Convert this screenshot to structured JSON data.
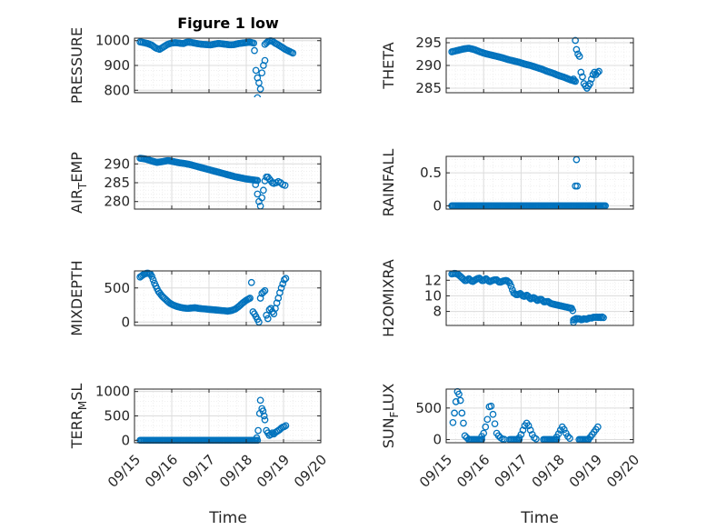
{
  "figure": {
    "title": "Figure 1 low",
    "xlabel": "Time"
  },
  "colors": {
    "marker": "#0072BD",
    "axis": "#262626",
    "grid": "#dcdcdc",
    "minor_grid": "#ececec"
  },
  "chart_data": [
    {
      "type": "scatter",
      "name": "pressure",
      "ylabel_parts": [
        {
          "t": "PRESSURE"
        }
      ],
      "xlim": [
        0,
        5
      ],
      "xticks": [
        0,
        1,
        2,
        3,
        4,
        5
      ],
      "xticklabels": [
        "09/15",
        "09/16",
        "09/17",
        "09/18",
        "09/19",
        "09/20"
      ],
      "ylim": [
        790,
        1010
      ],
      "yticks": [
        800,
        900,
        1000
      ],
      "yticklabels": [
        "800",
        "900",
        "1000"
      ],
      "segments": [
        {
          "x0": 0.15,
          "x1": 3.2,
          "y": [
            995,
            992,
            988,
            982,
            970,
            965,
            975,
            985,
            990,
            992,
            990,
            988,
            994,
            993,
            990,
            987,
            985,
            984,
            983,
            986,
            989,
            987,
            985,
            983,
            984,
            988,
            990,
            992,
            994,
            990
          ],
          "step": 0.04
        },
        {
          "x0": 3.5,
          "x1": 4.25,
          "y": [
            985,
            995,
            1000,
            998,
            990,
            985,
            978,
            972,
            965,
            960,
            955,
            950
          ],
          "step": 0.04
        }
      ],
      "points": [
        [
          3.22,
          960
        ],
        [
          3.26,
          880
        ],
        [
          3.3,
          850
        ],
        [
          3.34,
          830
        ],
        [
          3.38,
          805
        ],
        [
          3.42,
          870
        ],
        [
          3.46,
          900
        ],
        [
          3.5,
          920
        ],
        [
          3.3,
          770
        ]
      ]
    },
    {
      "type": "scatter",
      "name": "theta",
      "ylabel_parts": [
        {
          "t": "THETA"
        }
      ],
      "xlim": [
        0,
        5
      ],
      "xticks": [
        0,
        1,
        2,
        3,
        4,
        5
      ],
      "xticklabels": [
        "09/15",
        "09/16",
        "09/17",
        "09/18",
        "09/19",
        "09/20"
      ],
      "ylim": [
        284,
        296
      ],
      "yticks": [
        285,
        290,
        295
      ],
      "yticklabels": [
        "285",
        "290",
        "295"
      ],
      "segments": [
        {
          "x0": 0.15,
          "x1": 3.45,
          "y": [
            293,
            293.3,
            293.6,
            293.8,
            293.5,
            293,
            292.6,
            292.3,
            292,
            291.7,
            291.3,
            291,
            290.7,
            290.3,
            290,
            289.6,
            289.2,
            288.7,
            288.3,
            287.8,
            287.4,
            286.9,
            286.5
          ],
          "step": 0.035
        }
      ],
      "points": [
        [
          3.45,
          295.5
        ],
        [
          3.48,
          293.5
        ],
        [
          3.52,
          292.5
        ],
        [
          3.56,
          292
        ],
        [
          3.6,
          288.5
        ],
        [
          3.64,
          287.5
        ],
        [
          3.68,
          286
        ],
        [
          3.72,
          285.5
        ],
        [
          3.76,
          285
        ],
        [
          3.8,
          285.5
        ],
        [
          3.84,
          286
        ],
        [
          3.88,
          287
        ],
        [
          3.92,
          288
        ],
        [
          3.96,
          288.5
        ],
        [
          4.0,
          288
        ],
        [
          4.04,
          288.4
        ],
        [
          4.08,
          288.7
        ],
        [
          3.4,
          287
        ]
      ]
    },
    {
      "type": "scatter",
      "name": "air_temp",
      "ylabel_parts": [
        {
          "t": "AIR"
        },
        {
          "t": "T",
          "sub": true
        },
        {
          "t": "EMP"
        }
      ],
      "xlim": [
        0,
        5
      ],
      "xticks": [
        0,
        1,
        2,
        3,
        4,
        5
      ],
      "xticklabels": [
        "09/15",
        "09/16",
        "09/17",
        "09/18",
        "09/19",
        "09/20"
      ],
      "ylim": [
        278,
        292
      ],
      "yticks": [
        280,
        285,
        290
      ],
      "yticklabels": [
        "280",
        "285",
        "290"
      ],
      "segments": [
        {
          "x0": 0.15,
          "x1": 3.3,
          "y": [
            291.5,
            291.3,
            290.8,
            290.4,
            290.6,
            290.9,
            290.6,
            290.3,
            290.1,
            289.8,
            289.4,
            289,
            288.6,
            288.2,
            287.8,
            287.4,
            287,
            286.6,
            286.3,
            286,
            285.8,
            285.6
          ],
          "step": 0.035
        }
      ],
      "points": [
        [
          3.25,
          284.5
        ],
        [
          3.3,
          282
        ],
        [
          3.34,
          280
        ],
        [
          3.38,
          278.8
        ],
        [
          3.42,
          281
        ],
        [
          3.46,
          283
        ],
        [
          3.5,
          285.5
        ],
        [
          3.54,
          286.5
        ],
        [
          3.58,
          286.5
        ],
        [
          3.62,
          286
        ],
        [
          3.66,
          285.5
        ],
        [
          3.7,
          285
        ],
        [
          3.74,
          284.8
        ],
        [
          3.8,
          285
        ],
        [
          3.86,
          285.3
        ],
        [
          3.92,
          285
        ],
        [
          3.98,
          284.5
        ],
        [
          4.04,
          284.3
        ]
      ]
    },
    {
      "type": "scatter",
      "name": "rainfall",
      "ylabel_parts": [
        {
          "t": "RAINFALL"
        }
      ],
      "xlim": [
        0,
        5
      ],
      "xticks": [
        0,
        1,
        2,
        3,
        4,
        5
      ],
      "xticklabels": [
        "09/15",
        "09/16",
        "09/17",
        "09/18",
        "09/19",
        "09/20"
      ],
      "ylim": [
        -0.05,
        0.75
      ],
      "yticks": [
        0,
        0.5
      ],
      "yticklabels": [
        "0",
        "0.5"
      ],
      "segments": [
        {
          "x0": 0.15,
          "x1": 4.25,
          "y": [
            0
          ],
          "step": 0.035
        }
      ],
      "points": [
        [
          3.45,
          0.3
        ],
        [
          3.5,
          0.3
        ],
        [
          3.48,
          0.7
        ]
      ]
    },
    {
      "type": "scatter",
      "name": "mixdepth",
      "ylabel_parts": [
        {
          "t": "MIXDEPTH"
        }
      ],
      "xlim": [
        0,
        5
      ],
      "xticks": [
        0,
        1,
        2,
        3,
        4,
        5
      ],
      "xticklabels": [
        "09/15",
        "09/16",
        "09/17",
        "09/18",
        "09/19",
        "09/20"
      ],
      "ylim": [
        -50,
        750
      ],
      "yticks": [
        0,
        500
      ],
      "yticklabels": [
        "0",
        "500"
      ],
      "segments": [
        {
          "x0": 0.15,
          "x1": 3.1,
          "y": [
            660,
            700,
            720,
            700,
            560,
            450,
            380,
            330,
            280,
            250,
            230,
            215,
            205,
            200,
            205,
            210,
            200,
            195,
            190,
            185,
            180,
            175,
            170,
            165,
            160,
            170,
            190,
            230,
            280,
            320,
            350
          ],
          "step": 0.035
        }
      ],
      "points": [
        [
          3.14,
          580
        ],
        [
          3.18,
          150
        ],
        [
          3.22,
          120
        ],
        [
          3.26,
          80
        ],
        [
          3.3,
          40
        ],
        [
          3.34,
          0
        ],
        [
          3.38,
          350
        ],
        [
          3.42,
          420
        ],
        [
          3.46,
          440
        ],
        [
          3.5,
          460
        ],
        [
          3.54,
          100
        ],
        [
          3.58,
          50
        ],
        [
          3.62,
          180
        ],
        [
          3.66,
          200
        ],
        [
          3.7,
          150
        ],
        [
          3.74,
          120
        ],
        [
          3.78,
          200
        ],
        [
          3.82,
          280
        ],
        [
          3.86,
          350
        ],
        [
          3.9,
          430
        ],
        [
          3.94,
          500
        ],
        [
          3.98,
          560
        ],
        [
          4.02,
          620
        ],
        [
          4.06,
          640
        ]
      ]
    },
    {
      "type": "scatter",
      "name": "h2omixra",
      "ylabel_parts": [
        {
          "t": "H2OMIXRA"
        }
      ],
      "xlim": [
        0,
        5
      ],
      "xticks": [
        0,
        1,
        2,
        3,
        4,
        5
      ],
      "xticklabels": [
        "09/15",
        "09/16",
        "09/17",
        "09/18",
        "09/19",
        "09/20"
      ],
      "ylim": [
        6.2,
        13.2
      ],
      "yticks": [
        8,
        10,
        12
      ],
      "yticklabels": [
        "8",
        "10",
        "12"
      ],
      "segments": [
        {
          "x0": 0.15,
          "x1": 3.35,
          "y": [
            12.8,
            12.9,
            12.7,
            12.3,
            11.9,
            12.2,
            11.8,
            12.1,
            12.3,
            11.9,
            12.2,
            11.8,
            12.0,
            12.1,
            11.7,
            11.9,
            12.0,
            11.6,
            10.4,
            10.1,
            10.3,
            9.9,
            10.1,
            9.6,
            9.8,
            9.4,
            9.6,
            9.2,
            9.3,
            9.0,
            8.9,
            8.8,
            8.7,
            8.6,
            8.5,
            8.4
          ],
          "step": 0.035
        },
        {
          "x0": 3.4,
          "x1": 4.2,
          "y": [
            6.9,
            7.0,
            7.1,
            7.0,
            7.1,
            7.0,
            6.9,
            7.0,
            7.1,
            7.0,
            7.0,
            7.1,
            7.2,
            7.1,
            7.2,
            7.3,
            7.2,
            7.3,
            7.2,
            7.3,
            7.2,
            7.3,
            7.2
          ],
          "step": 0.035
        }
      ],
      "points": [
        [
          3.38,
          8.1
        ],
        [
          3.4,
          6.6
        ]
      ]
    },
    {
      "type": "scatter",
      "name": "terr_msl",
      "ylabel_parts": [
        {
          "t": "TERR"
        },
        {
          "t": "M",
          "sub": true
        },
        {
          "t": "SL"
        }
      ],
      "xlim": [
        0,
        5
      ],
      "xticks": [
        0,
        1,
        2,
        3,
        4,
        5
      ],
      "xticklabels": [
        "09/15",
        "09/16",
        "09/17",
        "09/18",
        "09/19",
        "09/20"
      ],
      "ylim": [
        -50,
        1050
      ],
      "yticks": [
        0,
        500,
        1000
      ],
      "yticklabels": [
        "0",
        "500",
        "1000"
      ],
      "segments": [
        {
          "x0": 0.15,
          "x1": 3.3,
          "y": [
            0
          ],
          "step": 0.035
        }
      ],
      "points": [
        [
          3.28,
          50
        ],
        [
          3.32,
          200
        ],
        [
          3.36,
          550
        ],
        [
          3.38,
          820
        ],
        [
          3.42,
          650
        ],
        [
          3.45,
          600
        ],
        [
          3.48,
          500
        ],
        [
          3.5,
          420
        ],
        [
          3.54,
          200
        ],
        [
          3.58,
          150
        ],
        [
          3.62,
          100
        ],
        [
          3.66,
          120
        ],
        [
          3.7,
          150
        ],
        [
          3.74,
          130
        ],
        [
          3.78,
          160
        ],
        [
          3.82,
          180
        ],
        [
          3.86,
          200
        ],
        [
          3.9,
          220
        ],
        [
          3.94,
          250
        ],
        [
          3.98,
          270
        ],
        [
          4.02,
          280
        ],
        [
          4.06,
          300
        ]
      ]
    },
    {
      "type": "scatter",
      "name": "sun_flux",
      "ylabel_parts": [
        {
          "t": "SUN"
        },
        {
          "t": "F",
          "sub": true
        },
        {
          "t": "LUX"
        }
      ],
      "xlim": [
        0,
        5
      ],
      "xticks": [
        0,
        1,
        2,
        3,
        4,
        5
      ],
      "xticklabels": [
        "09/15",
        "09/16",
        "09/17",
        "09/18",
        "09/19",
        "09/20"
      ],
      "ylim": [
        -50,
        800
      ],
      "yticks": [
        0,
        500
      ],
      "yticklabels": [
        "0",
        "500"
      ],
      "segments": [
        {
          "x0": 0.6,
          "x1": 0.95,
          "y": [
            0
          ],
          "step": 0.035
        },
        {
          "x0": 1.7,
          "x1": 1.95,
          "y": [
            0
          ],
          "step": 0.035
        },
        {
          "x0": 2.6,
          "x1": 2.95,
          "y": [
            0
          ],
          "step": 0.035
        },
        {
          "x0": 3.55,
          "x1": 3.8,
          "y": [
            0
          ],
          "step": 0.035
        }
      ],
      "points": [
        [
          0.18,
          270
        ],
        [
          0.22,
          420
        ],
        [
          0.26,
          600
        ],
        [
          0.3,
          760
        ],
        [
          0.34,
          720
        ],
        [
          0.38,
          620
        ],
        [
          0.42,
          420
        ],
        [
          0.46,
          260
        ],
        [
          0.5,
          60
        ],
        [
          0.55,
          30
        ],
        [
          0.95,
          50
        ],
        [
          1.0,
          100
        ],
        [
          1.05,
          200
        ],
        [
          1.1,
          320
        ],
        [
          1.15,
          520
        ],
        [
          1.2,
          530
        ],
        [
          1.25,
          400
        ],
        [
          1.3,
          250
        ],
        [
          1.35,
          100
        ],
        [
          1.4,
          60
        ],
        [
          1.45,
          30
        ],
        [
          1.5,
          10
        ],
        [
          1.55,
          5
        ],
        [
          1.95,
          30
        ],
        [
          2.0,
          80
        ],
        [
          2.05,
          150
        ],
        [
          2.1,
          220
        ],
        [
          2.15,
          260
        ],
        [
          2.2,
          220
        ],
        [
          2.25,
          150
        ],
        [
          2.3,
          80
        ],
        [
          2.35,
          30
        ],
        [
          2.4,
          10
        ],
        [
          2.95,
          40
        ],
        [
          3.0,
          90
        ],
        [
          3.05,
          150
        ],
        [
          3.1,
          200
        ],
        [
          3.15,
          160
        ],
        [
          3.2,
          100
        ],
        [
          3.25,
          50
        ],
        [
          3.3,
          20
        ],
        [
          3.8,
          10
        ],
        [
          3.85,
          40
        ],
        [
          3.9,
          80
        ],
        [
          3.95,
          120
        ],
        [
          4.0,
          160
        ],
        [
          4.05,
          200
        ]
      ]
    }
  ]
}
